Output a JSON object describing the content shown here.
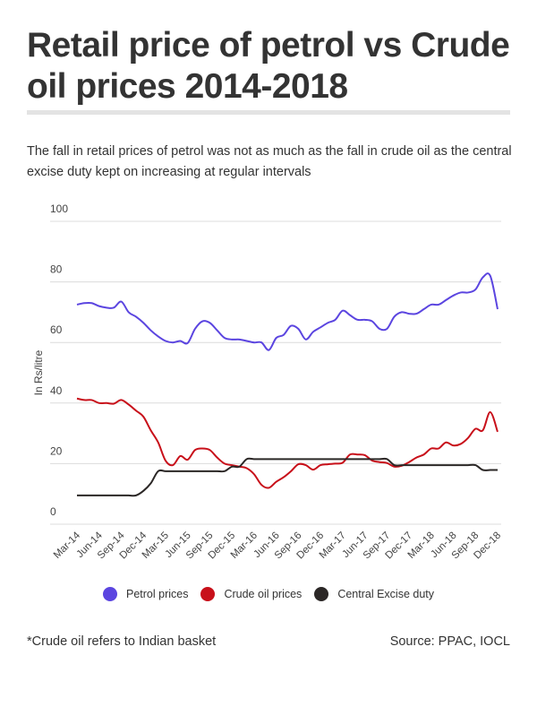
{
  "header": {
    "title": "Retail price of petrol vs Crude oil prices 2014-2018",
    "subtitle": "The fall in retail prices of petrol was not as much as the fall in crude oil as the central excise duty kept on increasing at regular intervals"
  },
  "footer": {
    "note": "*Crude oil refers to Indian basket",
    "source": "Source: PPAC, IOCL"
  },
  "chart_data": {
    "type": "line",
    "ylabel": "In Rs/litre",
    "ylim": [
      0,
      100
    ],
    "yticks": [
      0,
      20,
      40,
      60,
      80,
      100
    ],
    "grid": true,
    "legend_position": "bottom",
    "x_start": "Mar-14",
    "x_end": "Dec-18",
    "x_interval": "monthly",
    "xtick_labels": [
      "Mar-14",
      "Jun-14",
      "Sep-14",
      "Dec-14",
      "Mar-15",
      "Jun-15",
      "Sep-15",
      "Dec-15",
      "Mar-16",
      "Jun-16",
      "Sep-16",
      "Dec-16",
      "Mar-17",
      "Jun-17",
      "Sep-17",
      "Dec-17",
      "Mar-18",
      "Jun-18",
      "Sep-18",
      "Dec-18"
    ],
    "series": [
      {
        "name": "Petrol prices",
        "color": "#5b45e0",
        "values": [
          72.5,
          73,
          73,
          72,
          71.5,
          71.5,
          73.5,
          70,
          68.5,
          66.5,
          64,
          62,
          60.5,
          60,
          60.5,
          59.8,
          64.5,
          67,
          66.5,
          64,
          61.5,
          61,
          61,
          60.5,
          60,
          60,
          57.5,
          61.5,
          62.5,
          65.5,
          64.5,
          61,
          63.5,
          65,
          66.5,
          67.5,
          70.5,
          69,
          67.5,
          67.5,
          67,
          64.5,
          64.5,
          68.5,
          70,
          69.5,
          69.5,
          71,
          72.5,
          72.5,
          74,
          75.5,
          76.5,
          76.5,
          77.5,
          81.5,
          82,
          71
        ]
      },
      {
        "name": "Crude oil prices",
        "color": "#c8101a",
        "values": [
          41.5,
          41,
          41,
          40,
          40,
          39.8,
          41,
          39.5,
          37.5,
          35.5,
          31,
          27,
          21,
          19.5,
          22.5,
          21.3,
          24.5,
          25,
          24.5,
          22,
          20,
          19.5,
          19,
          18.5,
          16.5,
          13,
          12,
          14,
          15.5,
          17.5,
          19.8,
          19.5,
          18,
          19.5,
          19.8,
          20,
          20.3,
          23,
          23,
          22.8,
          21,
          20.5,
          20.2,
          19,
          19.3,
          20.5,
          22,
          23,
          25,
          25,
          27,
          26,
          26.5,
          28.5,
          31.5,
          31,
          37,
          30.5
        ]
      },
      {
        "name": "Central Excise duty",
        "color": "#2b2726",
        "values": [
          9.5,
          9.5,
          9.5,
          9.5,
          9.5,
          9.5,
          9.5,
          9.5,
          9.5,
          11,
          13.5,
          17.5,
          17.5,
          17.5,
          17.5,
          17.5,
          17.5,
          17.5,
          17.5,
          17.5,
          17.5,
          19,
          19,
          21.5,
          21.5,
          21.5,
          21.5,
          21.5,
          21.5,
          21.5,
          21.5,
          21.5,
          21.5,
          21.5,
          21.5,
          21.5,
          21.5,
          21.5,
          21.5,
          21.5,
          21.5,
          21.5,
          21.5,
          19.5,
          19.5,
          19.5,
          19.5,
          19.5,
          19.5,
          19.5,
          19.5,
          19.5,
          19.5,
          19.5,
          19.5,
          17.9,
          17.9,
          17.9
        ]
      }
    ]
  }
}
